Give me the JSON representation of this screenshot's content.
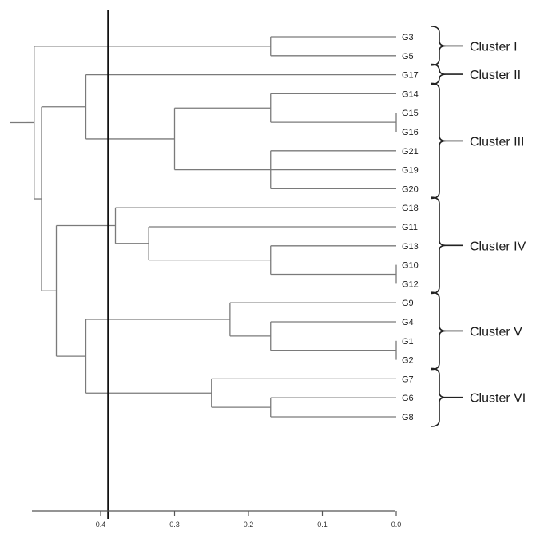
{
  "dendrogram": {
    "leaves": [
      "G3",
      "G5",
      "G17",
      "G14",
      "G15",
      "G16",
      "G21",
      "G19",
      "G20",
      "G18",
      "G11",
      "G13",
      "G10",
      "G12",
      "G9",
      "G4",
      "G1",
      "G2",
      "G7",
      "G6",
      "G8"
    ],
    "axis_ticks": [
      {
        "value": 0.4,
        "label": "0.4"
      },
      {
        "value": 0.3,
        "label": "0.3"
      },
      {
        "value": 0.2,
        "label": "0.2"
      },
      {
        "value": 0.1,
        "label": "0.1"
      },
      {
        "value": 0.0,
        "label": "0.0"
      }
    ],
    "cut_height": 0.39,
    "clusters": [
      {
        "label": "Cluster I",
        "first_leaf": 0,
        "last_leaf": 1
      },
      {
        "label": "Cluster II",
        "first_leaf": 2,
        "last_leaf": 2
      },
      {
        "label": "Cluster III",
        "first_leaf": 3,
        "last_leaf": 8
      },
      {
        "label": "Cluster IV",
        "first_leaf": 9,
        "last_leaf": 13
      },
      {
        "label": "Cluster V",
        "first_leaf": 14,
        "last_leaf": 17
      },
      {
        "label": "Cluster VI",
        "first_leaf": 18,
        "last_leaf": 20
      }
    ],
    "tree": {
      "h": 0.5,
      "c": [
        {
          "h": 0.49,
          "c": [
            {
              "h": 0.17,
              "c": [
                {
                  "leaf": 0
                },
                {
                  "leaf": 1
                }
              ]
            },
            {
              "h": 0.48,
              "c": [
                {
                  "h": 0.42,
                  "c": [
                    {
                      "leaf": 2
                    },
                    {
                      "h": 0.3,
                      "c": [
                        {
                          "h": 0.17,
                          "c": [
                            {
                              "leaf": 3
                            },
                            {
                              "h": 0.0,
                              "c": [
                                {
                                  "leaf": 4
                                },
                                {
                                  "leaf": 5
                                }
                              ]
                            }
                          ]
                        },
                        {
                          "h": 0.17,
                          "c": [
                            {
                              "leaf": 6
                            },
                            {
                              "leaf": 7
                            },
                            {
                              "leaf": 8
                            }
                          ]
                        }
                      ]
                    }
                  ]
                },
                {
                  "h": 0.46,
                  "c": [
                    {
                      "h": 0.38,
                      "c": [
                        {
                          "leaf": 9
                        },
                        {
                          "h": 0.335,
                          "c": [
                            {
                              "leaf": 10
                            },
                            {
                              "h": 0.17,
                              "c": [
                                {
                                  "leaf": 11
                                },
                                {
                                  "h": 0.0,
                                  "c": [
                                    {
                                      "leaf": 12
                                    },
                                    {
                                      "leaf": 13
                                    }
                                  ]
                                }
                              ]
                            }
                          ]
                        }
                      ]
                    },
                    {
                      "h": 0.42,
                      "c": [
                        {
                          "h": 0.225,
                          "c": [
                            {
                              "leaf": 14
                            },
                            {
                              "h": 0.17,
                              "c": [
                                {
                                  "leaf": 15
                                },
                                {
                                  "h": 0.0,
                                  "c": [
                                    {
                                      "leaf": 16
                                    },
                                    {
                                      "leaf": 17
                                    }
                                  ]
                                }
                              ]
                            }
                          ]
                        },
                        {
                          "h": 0.25,
                          "c": [
                            {
                              "leaf": 18
                            },
                            {
                              "h": 0.17,
                              "c": [
                                {
                                  "leaf": 19
                                },
                                {
                                  "leaf": 20
                                }
                              ]
                            }
                          ]
                        }
                      ]
                    }
                  ]
                }
              ]
            }
          ]
        }
      ]
    }
  }
}
